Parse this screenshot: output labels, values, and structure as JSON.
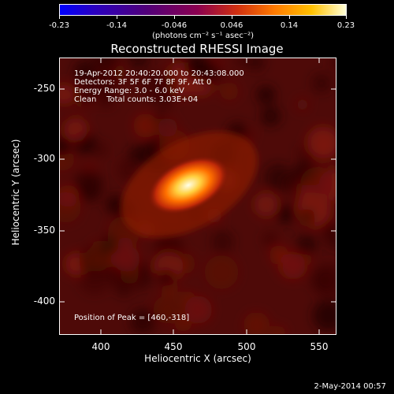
{
  "colorbar": {
    "tick_labels": [
      "-0.23",
      "-0.14",
      "-0.046",
      "0.046",
      "0.14",
      "0.23"
    ],
    "units": "(photons cm⁻² s⁻¹ asec⁻²)"
  },
  "title": "Reconstructed RHESSI Image",
  "info": {
    "line1": "19-Apr-2012 20:40:20.000 to 20:43:08.000",
    "line2": "Detectors: 3F 5F 6F 7F 8F 9F, Att 0",
    "line3": "Energy Range: 3.0 - 6.0 keV",
    "line4": "Clean    Total counts: 3.03E+04",
    "peak": "Position of Peak = [460,-318]"
  },
  "axes": {
    "xlabel": "Heliocentric X (arcsec)",
    "ylabel": "Heliocentric Y (arcsec)",
    "xticks": [
      "400",
      "450",
      "500",
      "550"
    ],
    "yticks": [
      "-250",
      "-300",
      "-350",
      "-400"
    ]
  },
  "datestamp": "2-May-2014 00:57",
  "colors": {
    "background": "#000000",
    "source_peak": "#ffffe0",
    "map_base": "#5a0a08"
  }
}
